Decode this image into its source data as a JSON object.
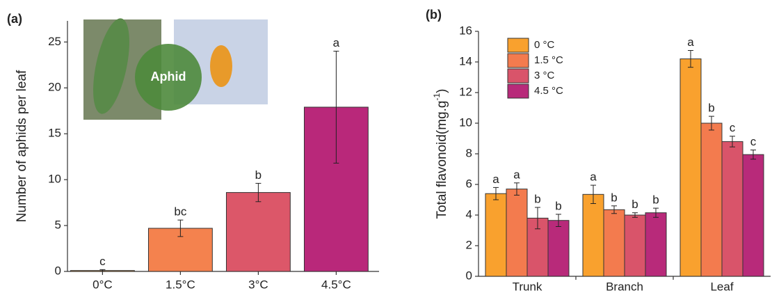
{
  "chart_data": [
    {
      "type": "bar",
      "panel_label": "(a)",
      "ylabel": "Number of aphids per leaf",
      "annotation": "Aphid",
      "categories": [
        "0°C",
        "1.5°C",
        "3°C",
        "4.5°C"
      ],
      "values": [
        0.1,
        4.7,
        8.6,
        17.9
      ],
      "errors": [
        0.1,
        0.9,
        1.0,
        6.1
      ],
      "letters": [
        "c",
        "bc",
        "b",
        "a"
      ],
      "colors": [
        "#f4a040",
        "#f4824e",
        "#dc5769",
        "#b9287a"
      ],
      "ylim": [
        0,
        27.3
      ],
      "yticks": [
        0,
        5,
        10,
        15,
        20,
        25
      ]
    },
    {
      "type": "grouped_bar",
      "panel_label": "(b)",
      "ylabel": {
        "text": "Total flavonoid(mg.g",
        "sup": "-1",
        "end": ")"
      },
      "categories": [
        "Trunk",
        "Branch",
        "Leaf"
      ],
      "series": [
        {
          "name": "0 °C",
          "color": "#f9a12e",
          "values": [
            5.4,
            5.35,
            14.2
          ],
          "errors": [
            0.4,
            0.6,
            0.55
          ],
          "letters": [
            "a",
            "a",
            "a"
          ]
        },
        {
          "name": "1.5 °C",
          "color": "#f37b4e",
          "values": [
            5.7,
            4.35,
            10.0
          ],
          "errors": [
            0.4,
            0.25,
            0.45
          ],
          "letters": [
            "a",
            "b",
            "b"
          ]
        },
        {
          "name": "3 °C",
          "color": "#d9546a",
          "values": [
            3.8,
            4.0,
            8.8
          ],
          "errors": [
            0.7,
            0.15,
            0.35
          ],
          "letters": [
            "b",
            "b",
            "c"
          ]
        },
        {
          "name": "4.5 °C",
          "color": "#b82a7a",
          "values": [
            3.65,
            4.15,
            7.95
          ],
          "errors": [
            0.4,
            0.3,
            0.3
          ],
          "letters": [
            "b",
            "b",
            "c"
          ]
        }
      ],
      "ylim": [
        0,
        16
      ],
      "yticks": [
        0,
        2,
        4,
        6,
        8,
        10,
        12,
        14,
        16
      ]
    }
  ]
}
